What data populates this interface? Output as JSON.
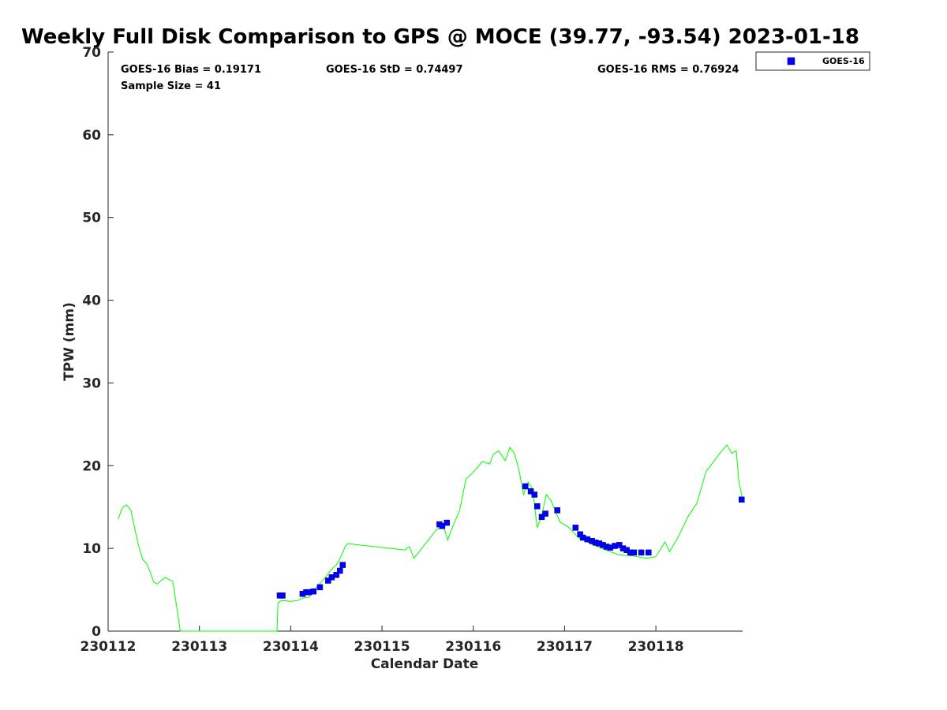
{
  "title": "Weekly Full Disk Comparison to GPS @ MOCE (39.77, -93.54) 2023-01-18",
  "stats": {
    "bias": "GOES-16 Bias = 0.19171",
    "std": "GOES-16 StD = 0.74497",
    "rms": "GOES-16 RMS = 0.76924",
    "sample": "Sample Size = 41"
  },
  "legend": {
    "label": "GOES-16"
  },
  "colors": {
    "gps_line": "#00ff00",
    "goes_marker": "#0000ff",
    "marker_edge": "#000080"
  },
  "chart_data": {
    "type": "scatter",
    "title": "Weekly Full Disk Comparison to GPS @ MOCE (39.77, -93.54) 2023-01-18",
    "xlabel": "Calendar Date",
    "ylabel": "TPW (mm)",
    "xlim": [
      230112,
      230119
    ],
    "ylim": [
      0,
      70
    ],
    "xticks": [
      230112,
      230113,
      230114,
      230115,
      230116,
      230117,
      230118
    ],
    "xtick_labels": [
      "230112",
      "230113",
      "230114",
      "230115",
      "230116",
      "230117",
      "230118"
    ],
    "yticks": [
      0,
      10,
      20,
      30,
      40,
      50,
      60,
      70
    ],
    "ytick_labels": [
      "0",
      "10",
      "20",
      "30",
      "40",
      "50",
      "60",
      "70"
    ],
    "grid": false,
    "legend_position": "outside top-right",
    "series": [
      {
        "name": "GOES-16",
        "type": "scatter",
        "x": [
          230113.88,
          230113.91,
          230114.13,
          230114.17,
          230114.2,
          230114.25,
          230114.32,
          230114.41,
          230114.45,
          230114.5,
          230114.54,
          230114.57,
          230115.63,
          230115.66,
          230115.71,
          230116.57,
          230116.63,
          230116.67,
          230116.7,
          230116.75,
          230116.79,
          230116.92,
          230117.12,
          230117.17,
          230117.2,
          230117.25,
          230117.3,
          230117.34,
          230117.38,
          230117.42,
          230117.46,
          230117.5,
          230117.55,
          230117.6,
          230117.64,
          230117.68,
          230117.72,
          230117.76,
          230117.84,
          230117.92,
          230118.94
        ],
        "y": [
          4.3,
          4.3,
          4.5,
          4.7,
          4.7,
          4.8,
          5.3,
          6.1,
          6.5,
          6.8,
          7.3,
          8.0,
          12.9,
          12.7,
          13.1,
          17.5,
          16.9,
          16.5,
          15.1,
          13.8,
          14.2,
          14.6,
          12.5,
          11.7,
          11.3,
          11.1,
          10.9,
          10.7,
          10.6,
          10.4,
          10.2,
          10.1,
          10.3,
          10.4,
          10.0,
          9.8,
          9.5,
          9.5,
          9.5,
          9.5,
          15.9
        ]
      },
      {
        "type": "line",
        "x": [
          230112.11,
          230112.15,
          230112.2,
          230112.25,
          230112.29,
          230112.33,
          230112.38,
          230112.42,
          230112.46,
          230112.5,
          230112.54,
          230112.58,
          230112.63,
          230112.67,
          230112.71,
          230112.75,
          230112.79,
          230112.83,
          230112.86,
          230112.9,
          230112.91,
          230113.85,
          230113.86,
          230113.9,
          230114.0,
          230114.08,
          230114.13,
          230114.2,
          230114.25,
          230114.3,
          230114.38,
          230114.45,
          230114.5,
          230114.55,
          230114.6,
          230114.63,
          230114.68,
          230115.25,
          230115.3,
          230115.35,
          230115.6,
          230115.68,
          230115.72,
          230115.78,
          230115.85,
          230115.92,
          230116.0,
          230116.1,
          230116.18,
          230116.22,
          230116.28,
          230116.35,
          230116.4,
          230116.45,
          230116.5,
          230116.55,
          230116.6,
          230116.65,
          230116.7,
          230116.75,
          230116.8,
          230116.85,
          230116.95,
          230117.05,
          230117.15,
          230117.3,
          230117.45,
          230117.6,
          230117.75,
          230117.9,
          230118.0,
          230118.1,
          230118.15,
          230118.25,
          230118.35,
          230118.45,
          230118.55,
          230118.62,
          230118.7,
          230118.78,
          230118.83,
          230118.88,
          230118.91,
          230118.95
        ],
        "y": [
          13.5,
          14.8,
          15.3,
          14.6,
          12.5,
          10.5,
          8.6,
          8.2,
          7.2,
          5.9,
          5.7,
          6.1,
          6.5,
          6.2,
          6.0,
          3.0,
          0,
          0,
          0,
          0,
          0,
          0,
          3.4,
          3.7,
          3.6,
          3.7,
          4.0,
          4.1,
          4.9,
          5.5,
          6.5,
          7.5,
          8.0,
          9.0,
          10.3,
          10.6,
          10.5,
          9.8,
          10.2,
          8.8,
          12.3,
          12.5,
          11.0,
          12.8,
          14.6,
          18.4,
          19.2,
          20.5,
          20.2,
          21.4,
          21.8,
          20.6,
          22.2,
          21.5,
          19.5,
          16.5,
          18.0,
          17.2,
          12.5,
          14.0,
          16.5,
          15.8,
          13.2,
          12.5,
          11.3,
          10.5,
          9.8,
          9.2,
          9.1,
          8.8,
          9.0,
          10.8,
          9.6,
          11.5,
          13.8,
          15.5,
          19.3,
          20.3,
          21.5,
          22.5,
          21.5,
          21.8,
          18.0,
          15.9
        ]
      }
    ]
  }
}
